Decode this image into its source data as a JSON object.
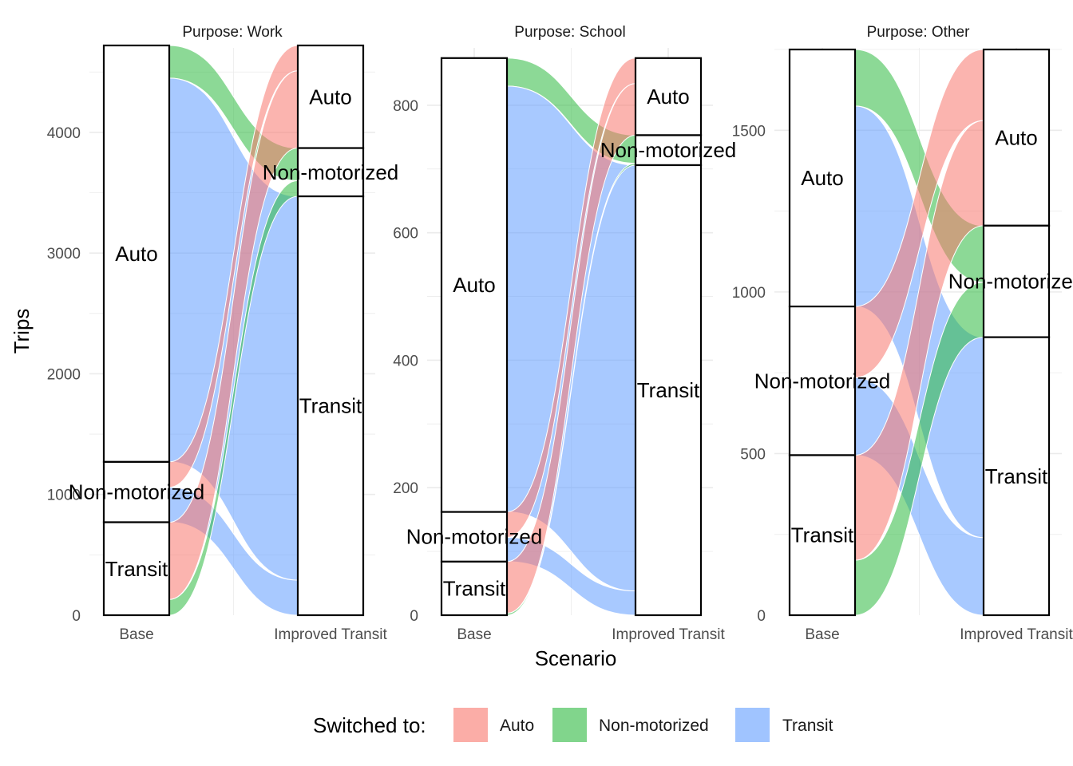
{
  "chart_data": {
    "type": "alluvial",
    "ylabel": "Trips",
    "xlabel": "Scenario",
    "axes": [
      "Base",
      "Improved Transit"
    ],
    "legend": {
      "title": "Switched to:",
      "position": "bottom",
      "items": [
        "Auto",
        "Non-motorized",
        "Transit"
      ]
    },
    "colors": {
      "Auto": "#F8766D",
      "Non-motorized": "#2DB93F",
      "Transit": "#619CFF",
      "grid": "#ebebeb",
      "stratum_fill": "#ffffff",
      "stratum_stroke": "#000000"
    },
    "grid": true,
    "panels": [
      {
        "strip": "Purpose: Work",
        "ylim": [
          0,
          4700
        ],
        "yticks": [
          0,
          1000,
          2000,
          3000,
          4000
        ],
        "ytick_labels": [
          "0",
          "1000",
          "2000",
          "3000",
          "4000"
        ],
        "strata_order": [
          "Auto",
          "Non-motorized",
          "Transit"
        ],
        "flows": [
          {
            "from": "Auto",
            "to": "Auto",
            "value": 0
          },
          {
            "from": "Auto",
            "to": "Non-motorized",
            "value": 270
          },
          {
            "from": "Auto",
            "to": "Transit",
            "value": 3180
          },
          {
            "from": "Non-motorized",
            "to": "Auto",
            "value": 210
          },
          {
            "from": "Non-motorized",
            "to": "Non-motorized",
            "value": 0
          },
          {
            "from": "Non-motorized",
            "to": "Transit",
            "value": 290
          },
          {
            "from": "Transit",
            "to": "Auto",
            "value": 640
          },
          {
            "from": "Transit",
            "to": "Non-motorized",
            "value": 130
          },
          {
            "from": "Transit",
            "to": "Transit",
            "value": 0
          }
        ]
      },
      {
        "strip": "Purpose: School",
        "ylim": [
          0,
          890
        ],
        "yticks": [
          0,
          200,
          400,
          600,
          800
        ],
        "ytick_labels": [
          "0",
          "200",
          "400",
          "600",
          "800"
        ],
        "strata_order": [
          "Auto",
          "Non-motorized",
          "Transit"
        ],
        "flows": [
          {
            "from": "Auto",
            "to": "Auto",
            "value": 0
          },
          {
            "from": "Auto",
            "to": "Non-motorized",
            "value": 44
          },
          {
            "from": "Auto",
            "to": "Transit",
            "value": 668
          },
          {
            "from": "Non-motorized",
            "to": "Auto",
            "value": 40
          },
          {
            "from": "Non-motorized",
            "to": "Non-motorized",
            "value": 0
          },
          {
            "from": "Non-motorized",
            "to": "Transit",
            "value": 38
          },
          {
            "from": "Transit",
            "to": "Auto",
            "value": 81
          },
          {
            "from": "Transit",
            "to": "Non-motorized",
            "value": 3
          },
          {
            "from": "Transit",
            "to": "Transit",
            "value": 0
          }
        ]
      },
      {
        "strip": "Purpose: Other",
        "ylim": [
          0,
          1755
        ],
        "yticks": [
          0,
          500,
          1000,
          1500
        ],
        "ytick_labels": [
          "0",
          "500",
          "1000",
          "1500"
        ],
        "strata_order": [
          "Auto",
          "Non-motorized",
          "Transit"
        ],
        "flows": [
          {
            "from": "Auto",
            "to": "Auto",
            "value": 0
          },
          {
            "from": "Auto",
            "to": "Non-motorized",
            "value": 175
          },
          {
            "from": "Auto",
            "to": "Transit",
            "value": 620
          },
          {
            "from": "Non-motorized",
            "to": "Auto",
            "value": 220
          },
          {
            "from": "Non-motorized",
            "to": "Non-motorized",
            "value": 0
          },
          {
            "from": "Non-motorized",
            "to": "Transit",
            "value": 240
          },
          {
            "from": "Transit",
            "to": "Auto",
            "value": 325
          },
          {
            "from": "Transit",
            "to": "Non-motorized",
            "value": 170
          },
          {
            "from": "Transit",
            "to": "Transit",
            "value": 0
          }
        ]
      }
    ]
  }
}
